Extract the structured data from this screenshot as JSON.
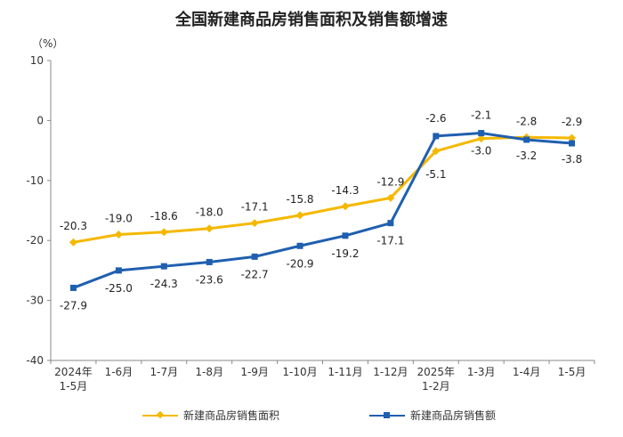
{
  "chart_data": {
    "type": "line",
    "title": "全国新建商品房销售面积及销售额增速",
    "unit": "（%）",
    "categories": [
      "2024年 1-5月",
      "1-6月",
      "1-7月",
      "1-8月",
      "1-9月",
      "1-10月",
      "1-11月",
      "1-12月",
      "2025年 1-2月",
      "1-3月",
      "1-4月",
      "1-5月"
    ],
    "ylim": [
      -40,
      10
    ],
    "yticks": [
      10,
      0,
      -10,
      -20,
      -30,
      -40
    ],
    "series": [
      {
        "name": "新建商品房销售面积",
        "color": "#F5B800",
        "marker": "diamond",
        "values": [
          -20.3,
          -19.0,
          -18.6,
          -18.0,
          -17.1,
          -15.8,
          -14.3,
          -12.9,
          -5.1,
          -3.0,
          -2.8,
          -2.9
        ],
        "labels": [
          "-20.3",
          "-19.0",
          "-18.6",
          "-18.0",
          "-17.1",
          "-15.8",
          "-14.3",
          "-12.9",
          "-5.1",
          "-3.0",
          "-2.8",
          "-2.9"
        ]
      },
      {
        "name": "新建商品房销售额",
        "color": "#1F5FAF",
        "marker": "square",
        "values": [
          -27.9,
          -25.0,
          -24.3,
          -23.6,
          -22.7,
          -20.9,
          -19.2,
          -17.1,
          -2.6,
          -2.1,
          -3.2,
          -3.8
        ],
        "labels": [
          "-27.9",
          "-25.0",
          "-24.3",
          "-23.6",
          "-22.7",
          "-20.9",
          "-19.2",
          "-17.1",
          "-2.6",
          "-2.1",
          "-3.2",
          "-3.8"
        ]
      }
    ],
    "legend_position": "bottom"
  }
}
